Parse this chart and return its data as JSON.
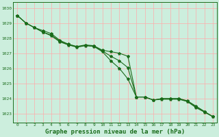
{
  "background_color": "#cceedd",
  "grid_color": "#ffaaaa",
  "line_color": "#1a6b1a",
  "xlabel": "Graphe pression niveau de la mer (hPa)",
  "xlabel_fontsize": 6.5,
  "ylim": [
    1022.4,
    1030.4
  ],
  "xlim": [
    -0.5,
    23.5
  ],
  "yticks": [
    1023,
    1024,
    1025,
    1026,
    1027,
    1028,
    1029,
    1030
  ],
  "xticks": [
    0,
    1,
    2,
    3,
    4,
    5,
    6,
    7,
    8,
    9,
    10,
    11,
    12,
    13,
    14,
    15,
    16,
    17,
    18,
    19,
    20,
    21,
    22,
    23
  ],
  "series1": [
    1029.5,
    1029.0,
    1028.7,
    1028.5,
    1028.3,
    1027.85,
    1027.6,
    1027.45,
    1027.55,
    1027.5,
    1027.2,
    1027.1,
    1027.0,
    1026.8,
    1024.1,
    1024.1,
    1023.9,
    1024.0,
    1024.0,
    1024.0,
    1023.85,
    1023.5,
    1023.15,
    1022.8
  ],
  "series2": [
    1029.5,
    1029.0,
    1028.7,
    1028.4,
    1028.15,
    1027.75,
    1027.55,
    1027.4,
    1027.5,
    1027.45,
    1027.1,
    1026.5,
    1026.0,
    1025.3,
    1024.1,
    1024.1,
    1023.9,
    1023.95,
    1023.95,
    1023.95,
    1023.8,
    1023.4,
    1023.1,
    1022.8
  ],
  "series3": [
    1029.5,
    1029.0,
    1028.7,
    1028.4,
    1028.2,
    1027.8,
    1027.58,
    1027.42,
    1027.52,
    1027.47,
    1027.15,
    1026.8,
    1026.5,
    1026.05,
    1024.1,
    1024.1,
    1023.9,
    1023.98,
    1023.98,
    1023.98,
    1023.82,
    1023.45,
    1023.12,
    1022.8
  ]
}
